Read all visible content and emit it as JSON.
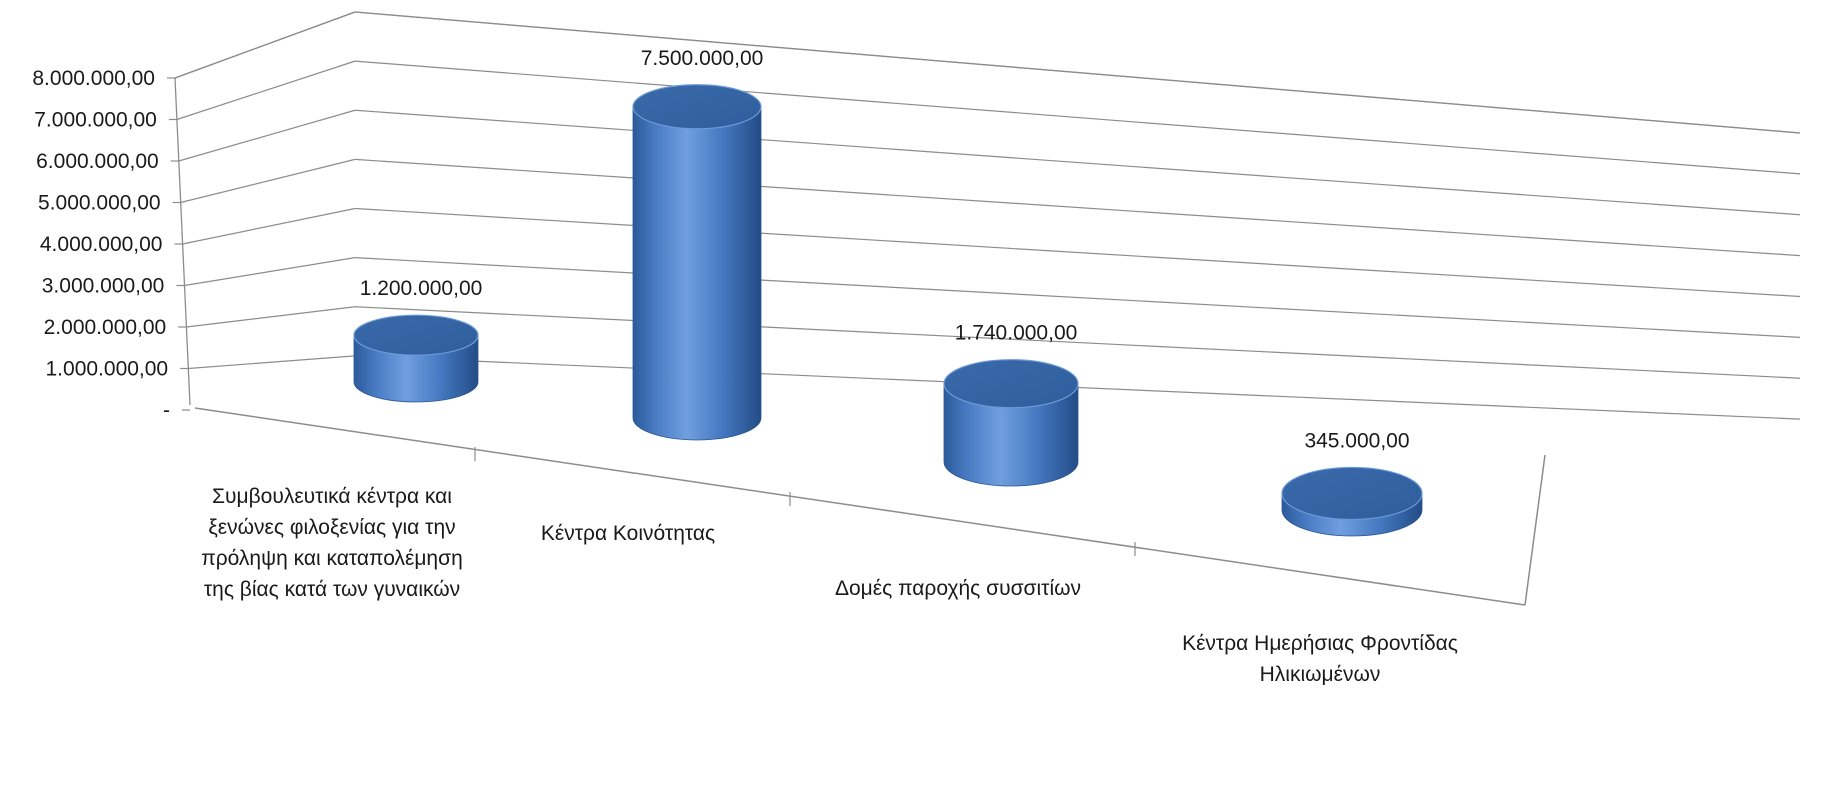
{
  "chart_data": {
    "type": "bar",
    "style": "3d-cylinder",
    "categories": [
      [
        "Συμβουλευτικά κέντρα και",
        "ξενώνες φιλοξενίας για την",
        "πρόληψη και καταπολέμηση",
        "της βίας κατά των γυναικών"
      ],
      [
        "Κέντρα Κοινότητας"
      ],
      [
        "Δομές παροχής συσσιτίων"
      ],
      [
        "Κέντρα Ημερήσιας Φροντίδας",
        "Ηλικιωμένων"
      ]
    ],
    "values": [
      1200000,
      7500000,
      1740000,
      345000
    ],
    "data_labels": [
      "1.200.000,00",
      "7.500.000,00",
      "1.740.000,00",
      "345.000,00"
    ],
    "ylim": [
      0,
      8000000
    ],
    "yticks": [
      0,
      1000000,
      2000000,
      3000000,
      4000000,
      5000000,
      6000000,
      7000000,
      8000000
    ],
    "ytick_labels": [
      "-",
      "1.000.000,00",
      "2.000.000,00",
      "3.000.000,00",
      "4.000.000,00",
      "5.000.000,00",
      "6.000.000,00",
      "7.000.000,00",
      "8.000.000,00"
    ],
    "grid": true,
    "legend": "none",
    "colors": {
      "bar": "#4f81bd",
      "bar_dark": "#2b5797",
      "bar_top": "#3a6db0",
      "grid": "#8c8c8c"
    }
  }
}
